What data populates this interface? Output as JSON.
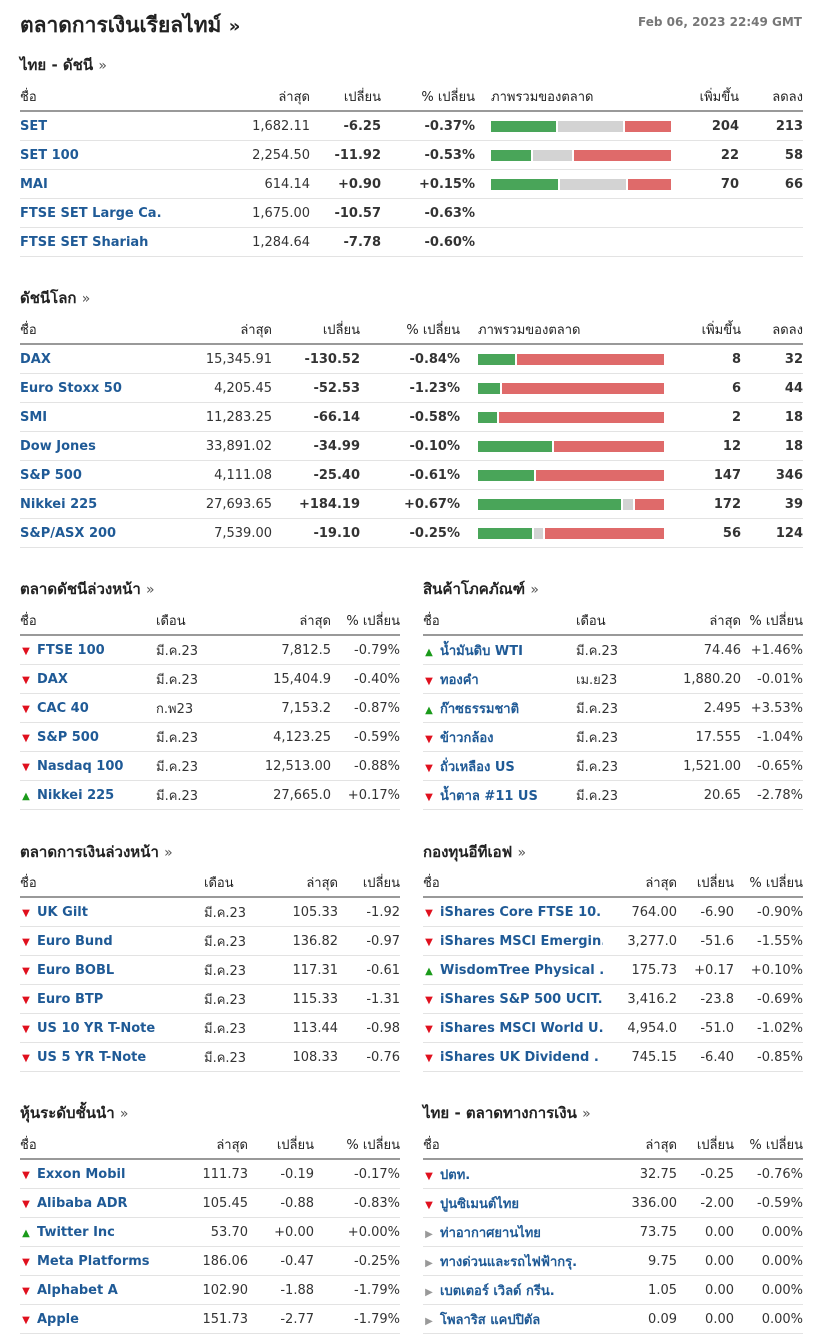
{
  "header": {
    "title": "ตลาดการเงินเรียลไทม์",
    "arrow": "»",
    "timestamp": "Feb 06, 2023 22:49 GMT"
  },
  "colors": {
    "up": "#1a9a1a",
    "down": "#e0101e",
    "link": "#1f5a96",
    "bar_green": "#49a559",
    "bar_grey": "#d3d3d3",
    "bar_red": "#df6a6a"
  },
  "thai_indices": {
    "title": "ไทย - ดัชนี",
    "headers": {
      "name": "ชื่อ",
      "last": "ล่าสุด",
      "chg": "เปลี่ยน",
      "pct": "% เปลี่ยน",
      "overview": "ภาพรวมของตลาด",
      "adv": "เพิ่มขึ้น",
      "dec": "ลดลง"
    },
    "rows": [
      {
        "name": "SET",
        "last": "1,682.11",
        "chg": "-6.25",
        "pct": "-0.37%",
        "adv": "204",
        "dec": "213",
        "bar": [
          0.36,
          0.36,
          0.28
        ]
      },
      {
        "name": "SET 100",
        "last": "2,254.50",
        "chg": "-11.92",
        "pct": "-0.53%",
        "adv": "22",
        "dec": "58",
        "bar": [
          0.22,
          0.22,
          0.56
        ]
      },
      {
        "name": "MAI",
        "last": "614.14",
        "chg": "+0.90",
        "pct": "+0.15%",
        "adv": "70",
        "dec": "66",
        "bar": [
          0.37,
          0.37,
          0.26
        ]
      },
      {
        "name": "FTSE SET Large Ca.",
        "last": "1,675.00",
        "chg": "-10.57",
        "pct": "-0.63%",
        "adv": "",
        "dec": "",
        "bar": null
      },
      {
        "name": "FTSE SET Shariah",
        "last": "1,284.64",
        "chg": "-7.78",
        "pct": "-0.60%",
        "adv": "",
        "dec": "",
        "bar": null
      }
    ]
  },
  "world_indices": {
    "title": "ดัชนีโลก",
    "headers": {
      "name": "ชื่อ",
      "last": "ล่าสุด",
      "chg": "เปลี่ยน",
      "pct": "% เปลี่ยน",
      "overview": "ภาพรวมของตลาด",
      "adv": "เพิ่มขึ้น",
      "dec": "ลดลง"
    },
    "rows": [
      {
        "name": "DAX",
        "last": "15,345.91",
        "chg": "-130.52",
        "pct": "-0.84%",
        "adv": "8",
        "dec": "32",
        "bar": [
          0.2,
          0.0,
          0.8
        ]
      },
      {
        "name": "Euro Stoxx 50",
        "last": "4,205.45",
        "chg": "-52.53",
        "pct": "-1.23%",
        "adv": "6",
        "dec": "44",
        "bar": [
          0.12,
          0.0,
          0.88
        ]
      },
      {
        "name": "SMI",
        "last": "11,283.25",
        "chg": "-66.14",
        "pct": "-0.58%",
        "adv": "2",
        "dec": "18",
        "bar": [
          0.1,
          0.0,
          0.9
        ]
      },
      {
        "name": "Dow Jones",
        "last": "33,891.02",
        "chg": "-34.99",
        "pct": "-0.10%",
        "adv": "12",
        "dec": "18",
        "bar": [
          0.4,
          0.0,
          0.6
        ]
      },
      {
        "name": "S&P 500",
        "last": "4,111.08",
        "chg": "-25.40",
        "pct": "-0.61%",
        "adv": "147",
        "dec": "346",
        "bar": [
          0.3,
          0.0,
          0.7
        ]
      },
      {
        "name": "Nikkei 225",
        "last": "27,693.65",
        "chg": "+184.19",
        "pct": "+0.67%",
        "adv": "172",
        "dec": "39",
        "bar": [
          0.77,
          0.05,
          0.18
        ]
      },
      {
        "name": "S&P/ASX 200",
        "last": "7,539.00",
        "chg": "-19.10",
        "pct": "-0.25%",
        "adv": "56",
        "dec": "124",
        "bar": [
          0.29,
          0.05,
          0.66
        ]
      }
    ]
  },
  "index_futures": {
    "title": "ตลาดดัชนีล่วงหน้า",
    "headers": {
      "name": "ชื่อ",
      "month": "เดือน",
      "last": "ล่าสุด",
      "pct": "% เปลี่ยน"
    },
    "rows": [
      {
        "dir": "down",
        "name": "FTSE 100",
        "month": "มี.ค.23",
        "last": "7,812.5",
        "pct": "-0.79%"
      },
      {
        "dir": "down",
        "name": "DAX",
        "month": "มี.ค.23",
        "last": "15,404.9",
        "pct": "-0.40%"
      },
      {
        "dir": "down",
        "name": "CAC 40",
        "month": "ก.พ23",
        "last": "7,153.2",
        "pct": "-0.87%"
      },
      {
        "dir": "down",
        "name": "S&P 500",
        "month": "มี.ค.23",
        "last": "4,123.25",
        "pct": "-0.59%"
      },
      {
        "dir": "down",
        "name": "Nasdaq 100",
        "month": "มี.ค.23",
        "last": "12,513.00",
        "pct": "-0.88%"
      },
      {
        "dir": "up",
        "name": "Nikkei 225",
        "month": "มี.ค.23",
        "last": "27,665.0",
        "pct": "+0.17%"
      }
    ]
  },
  "commodities": {
    "title": "สินค้าโภคภัณฑ์",
    "headers": {
      "name": "ชื่อ",
      "month": "เดือน",
      "last": "ล่าสุด",
      "pct": "% เปลี่ยน"
    },
    "rows": [
      {
        "dir": "up",
        "name": "น้ำมันดิบ WTI",
        "month": "มี.ค.23",
        "last": "74.46",
        "pct": "+1.46%"
      },
      {
        "dir": "down",
        "name": "ทองคำ",
        "month": "เม.ย23",
        "last": "1,880.20",
        "pct": "-0.01%"
      },
      {
        "dir": "up",
        "name": "ก๊าซธรรมชาติ",
        "month": "มี.ค.23",
        "last": "2.495",
        "pct": "+3.53%"
      },
      {
        "dir": "down",
        "name": "ข้าวกล้อง",
        "month": "มี.ค.23",
        "last": "17.555",
        "pct": "-1.04%"
      },
      {
        "dir": "down",
        "name": "ถั่วเหลือง US",
        "month": "มี.ค.23",
        "last": "1,521.00",
        "pct": "-0.65%"
      },
      {
        "dir": "down",
        "name": "น้ำตาล #11 US",
        "month": "มี.ค.23",
        "last": "20.65",
        "pct": "-2.78%"
      }
    ]
  },
  "bond_futures": {
    "title": "ตลาดการเงินล่วงหน้า",
    "headers": {
      "name": "ชื่อ",
      "month": "เดือน",
      "last": "ล่าสุด",
      "chg": "เปลี่ยน"
    },
    "rows": [
      {
        "dir": "down",
        "name": "UK Gilt",
        "month": "มี.ค.23",
        "last": "105.33",
        "chg": "-1.92"
      },
      {
        "dir": "down",
        "name": "Euro Bund",
        "month": "มี.ค.23",
        "last": "136.82",
        "chg": "-0.97"
      },
      {
        "dir": "down",
        "name": "Euro BOBL",
        "month": "มี.ค.23",
        "last": "117.31",
        "chg": "-0.61"
      },
      {
        "dir": "down",
        "name": "Euro BTP",
        "month": "มี.ค.23",
        "last": "115.33",
        "chg": "-1.31"
      },
      {
        "dir": "down",
        "name": "US 10 YR T-Note",
        "month": "มี.ค.23",
        "last": "113.44",
        "chg": "-0.98"
      },
      {
        "dir": "down",
        "name": "US 5 YR T-Note",
        "month": "มี.ค.23",
        "last": "108.33",
        "chg": "-0.76"
      }
    ]
  },
  "etfs": {
    "title": "กองทุนอีทีเอฟ",
    "headers": {
      "name": "ชื่อ",
      "last": "ล่าสุด",
      "chg": "เปลี่ยน",
      "pct": "% เปลี่ยน"
    },
    "rows": [
      {
        "dir": "down",
        "name": "iShares Core FTSE 10.",
        "last": "764.00",
        "chg": "-6.90",
        "pct": "-0.90%"
      },
      {
        "dir": "down",
        "name": "iShares MSCI Emergin.",
        "last": "3,277.0",
        "chg": "-51.6",
        "pct": "-1.55%"
      },
      {
        "dir": "up",
        "name": "WisdomTree Physical .",
        "last": "175.73",
        "chg": "+0.17",
        "pct": "+0.10%"
      },
      {
        "dir": "down",
        "name": "iShares S&P 500 UCIT.",
        "last": "3,416.2",
        "chg": "-23.8",
        "pct": "-0.69%"
      },
      {
        "dir": "down",
        "name": "iShares MSCI World U.",
        "last": "4,954.0",
        "chg": "-51.0",
        "pct": "-1.02%"
      },
      {
        "dir": "down",
        "name": "iShares UK Dividend .",
        "last": "745.15",
        "chg": "-6.40",
        "pct": "-0.85%"
      }
    ]
  },
  "leading_stocks": {
    "title": "หุ้นระดับชั้นนำ",
    "headers": {
      "name": "ชื่อ",
      "last": "ล่าสุด",
      "chg": "เปลี่ยน",
      "pct": "% เปลี่ยน"
    },
    "rows": [
      {
        "dir": "down",
        "name": "Exxon Mobil",
        "last": "111.73",
        "chg": "-0.19",
        "pct": "-0.17%"
      },
      {
        "dir": "down",
        "name": "Alibaba ADR",
        "last": "105.45",
        "chg": "-0.88",
        "pct": "-0.83%"
      },
      {
        "dir": "up",
        "name": "Twitter Inc",
        "last": "53.70",
        "chg": "+0.00",
        "pct": "+0.00%"
      },
      {
        "dir": "down",
        "name": "Meta Platforms",
        "last": "186.06",
        "chg": "-0.47",
        "pct": "-0.25%"
      },
      {
        "dir": "down",
        "name": "Alphabet A",
        "last": "102.90",
        "chg": "-1.88",
        "pct": "-1.79%"
      },
      {
        "dir": "down",
        "name": "Apple",
        "last": "151.73",
        "chg": "-2.77",
        "pct": "-1.79%"
      }
    ]
  },
  "thai_money": {
    "title": "ไทย - ตลาดทางการเงิน",
    "headers": {
      "name": "ชื่อ",
      "last": "ล่าสุด",
      "chg": "เปลี่ยน",
      "pct": "% เปลี่ยน"
    },
    "rows": [
      {
        "dir": "down",
        "name": "ปตท.",
        "last": "32.75",
        "chg": "-0.25",
        "pct": "-0.76%"
      },
      {
        "dir": "down",
        "name": "ปูนซิเมนต์ไทย",
        "last": "336.00",
        "chg": "-2.00",
        "pct": "-0.59%"
      },
      {
        "dir": "flat",
        "name": "ท่าอากาศยานไทย",
        "last": "73.75",
        "chg": "0.00",
        "pct": "0.00%"
      },
      {
        "dir": "flat",
        "name": "ทางด่วนและรถไฟฟ้ากรุ.",
        "last": "9.75",
        "chg": "0.00",
        "pct": "0.00%"
      },
      {
        "dir": "flat",
        "name": "เบตเตอร์ เวิลด์ กรีน.",
        "last": "1.05",
        "chg": "0.00",
        "pct": "0.00%"
      },
      {
        "dir": "flat",
        "name": "โพลาริส แคปปิตัล",
        "last": "0.09",
        "chg": "0.00",
        "pct": "0.00%"
      }
    ]
  }
}
